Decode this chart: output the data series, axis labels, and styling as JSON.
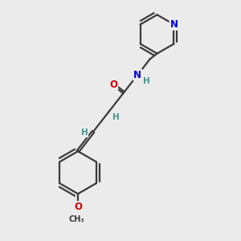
{
  "bg_color": "#ebebeb",
  "bond_color": "#3a3a3a",
  "bond_width": 1.6,
  "atom_colors": {
    "N": "#0000cc",
    "O": "#cc0000",
    "C": "#3a3a3a",
    "H": "#4a9090"
  },
  "font_size_atom": 8.5,
  "font_size_H": 7.5,
  "font_size_small": 7.0
}
